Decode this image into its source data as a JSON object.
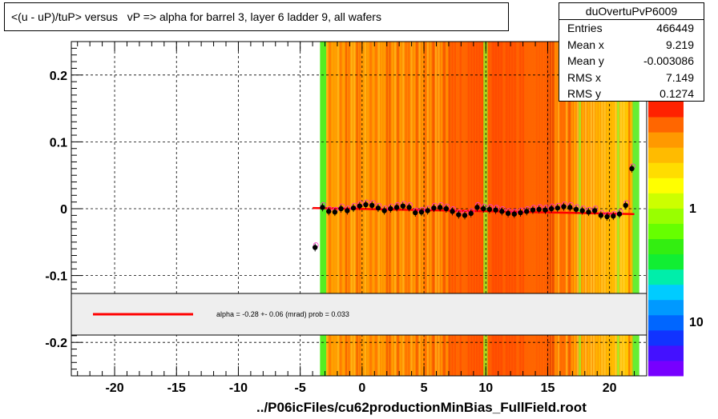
{
  "title": "<(u - uP)/tuP> versus   vP => alpha for barrel 3, layer 6 ladder 9, all wafers",
  "footer": "../P06icFiles/cu62productionMinBias_FullField.root",
  "stats": {
    "name": "duOvertuPvP6009",
    "rows": [
      {
        "label": "Entries",
        "value": "466449"
      },
      {
        "label": "Mean x",
        "value": "9.219"
      },
      {
        "label": "Mean y",
        "value": "-0.003086"
      },
      {
        "label": "RMS x",
        "value": "7.149"
      },
      {
        "label": "RMS y",
        "value": "0.1274"
      }
    ]
  },
  "fit_text": "alpha =   -0.28 +-  0.06 (mrad) prob = 0.033",
  "colors": {
    "fit_line": "#ff0000",
    "points": "#000000",
    "open_points": "#ff33cc"
  },
  "chart_data": {
    "type": "scatter",
    "xlim": [
      -23.5,
      23
    ],
    "ylim": [
      -0.25,
      0.25
    ],
    "x_ticks": [
      "-20",
      "-15",
      "-10",
      "-5",
      "0",
      "5",
      "10",
      "15",
      "20"
    ],
    "y_ticks": [
      "0.2",
      "0.1",
      "0",
      "-0.1",
      "-0.2"
    ],
    "z_ticks": [
      "1",
      "10"
    ],
    "grid": true,
    "fit": {
      "x": [
        -4,
        22
      ],
      "y": [
        0.001,
        -0.008
      ]
    },
    "profile": {
      "x": [
        -3.8,
        -3.2,
        -2.7,
        -2.2,
        -1.7,
        -1.2,
        -0.7,
        -0.2,
        0.3,
        0.8,
        1.3,
        1.8,
        2.3,
        2.8,
        3.3,
        3.8,
        4.3,
        4.8,
        5.3,
        5.8,
        6.3,
        6.8,
        7.3,
        7.8,
        8.3,
        8.8,
        9.3,
        9.8,
        10.3,
        10.8,
        11.3,
        11.8,
        12.3,
        12.8,
        13.3,
        13.8,
        14.3,
        14.8,
        15.3,
        15.8,
        16.3,
        16.8,
        17.3,
        17.8,
        18.3,
        18.8,
        19.3,
        19.8,
        20.3,
        20.8,
        21.3,
        21.8
      ],
      "y": [
        -0.058,
        0.002,
        -0.004,
        -0.005,
        0.0,
        -0.003,
        0.001,
        0.004,
        0.006,
        0.005,
        0.001,
        -0.003,
        0.0,
        0.002,
        0.004,
        0.002,
        -0.006,
        -0.005,
        -0.003,
        0.001,
        0.002,
        0.0,
        -0.004,
        -0.009,
        -0.01,
        -0.007,
        0.002,
        0.0,
        -0.001,
        -0.002,
        -0.004,
        -0.007,
        -0.008,
        -0.006,
        -0.004,
        -0.002,
        -0.001,
        -0.002,
        0.0,
        0.001,
        0.003,
        0.002,
        -0.001,
        -0.003,
        -0.005,
        -0.003,
        -0.01,
        -0.012,
        -0.011,
        -0.008,
        0.005,
        0.06
      ]
    }
  }
}
